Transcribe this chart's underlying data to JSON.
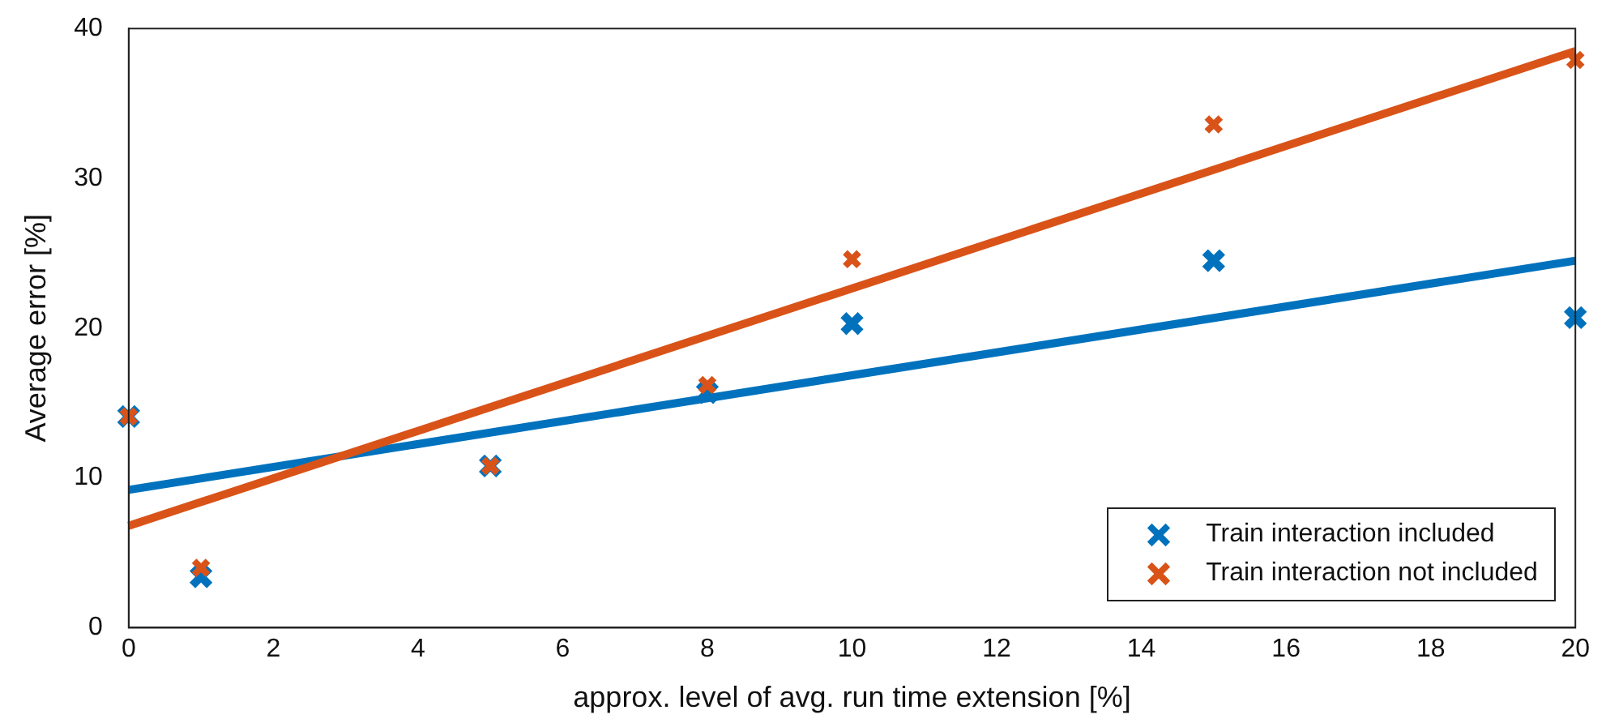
{
  "chart_data": {
    "type": "scatter",
    "xlabel": "approx. level of avg. run time extension [%]",
    "ylabel": "Average error [%]",
    "xlim": [
      0,
      20
    ],
    "xticks": [
      0,
      2,
      4,
      6,
      8,
      10,
      12,
      14,
      16,
      18,
      20
    ],
    "ylim": [
      0,
      40
    ],
    "yticks": [
      0,
      10,
      20,
      30,
      40
    ],
    "grid": false,
    "legend": "bottom right",
    "series": [
      {
        "name": "Train interaction included",
        "marker": "cross",
        "color": "#0072bd",
        "x": [
          0,
          1,
          5,
          8,
          10,
          15,
          20
        ],
        "values": [
          14.1,
          3.4,
          10.8,
          15.7,
          20.3,
          24.5,
          20.7
        ]
      },
      {
        "name": "Train interaction not included",
        "marker": "cross",
        "color": "#d95319",
        "x": [
          0,
          1,
          5,
          8,
          10,
          15,
          20
        ],
        "values": [
          14.1,
          4.0,
          10.8,
          16.2,
          24.6,
          33.6,
          37.9
        ]
      },
      {
        "type": "line",
        "marker": "none",
        "color": "#0072bd",
        "x": [
          0,
          20
        ],
        "values": [
          9.2,
          24.5
        ]
      },
      {
        "type": "line",
        "marker": "none",
        "color": "#d95319",
        "x": [
          0,
          20
        ],
        "values": [
          6.8,
          38.5
        ]
      }
    ]
  }
}
